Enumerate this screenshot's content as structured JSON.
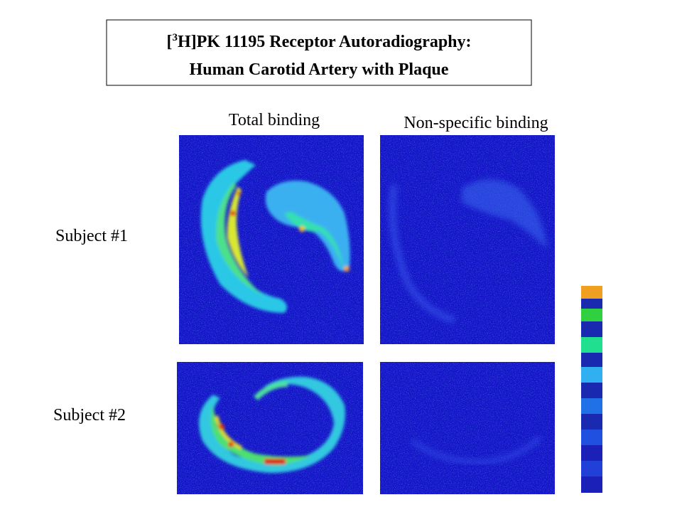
{
  "title": {
    "prefix": "[",
    "superscript": "3",
    "line1": "H]PK 11195 Receptor Autoradiography:",
    "line2": "Human Carotid Artery with Plaque"
  },
  "columns": [
    "Total binding",
    "Non-specific binding"
  ],
  "rows": [
    "Subject #1",
    "Subject #2"
  ]
}
